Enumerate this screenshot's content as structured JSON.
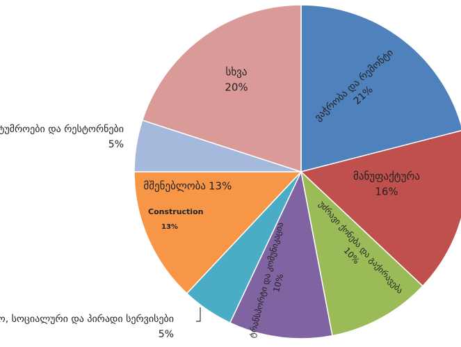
{
  "chart_data": {
    "type": "pie",
    "categories": [
      "ვაჭრობა და რემონტი",
      "მანუფაქტურა",
      "უძრავი ქონება და გაქირავება",
      "ტრანსპორტი და კომუნიკაცია",
      "სათემო, სოციალური და პირადი სერვისები",
      "მშენებლობა",
      "სასტუმროები და რესტორნები",
      "სხვა"
    ],
    "values": [
      21,
      16,
      10,
      10,
      5,
      13,
      5,
      20
    ],
    "value_labels": [
      "21%",
      "16%",
      "10%",
      "10%",
      "5%",
      "13%",
      "5%",
      "20%"
    ],
    "colors": [
      "#4f81bd",
      "#c0504d",
      "#9bbb59",
      "#8064a2",
      "#4bacc6",
      "#f79646",
      "#a5b9dc",
      "#d99a98"
    ],
    "annotations": [
      "Construction",
      "13%"
    ]
  }
}
